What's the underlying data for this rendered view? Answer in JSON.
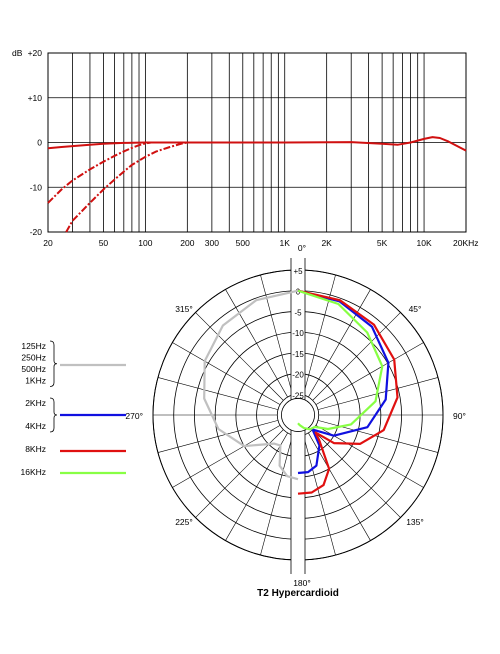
{
  "chart_data": [
    {
      "type": "line",
      "title": "",
      "xlabel": "",
      "ylabel": "dB",
      "x_scale": "log",
      "xlim": [
        20,
        20000
      ],
      "ylim": [
        -20,
        20
      ],
      "grid": true,
      "x_tick_labels": [
        "20",
        "50",
        "100",
        "200",
        "300",
        "500",
        "1K",
        "2K",
        "5K",
        "10K",
        "20KHz"
      ],
      "x_tick_values": [
        20,
        50,
        100,
        200,
        300,
        500,
        1000,
        2000,
        5000,
        10000,
        20000
      ],
      "y_tick_labels": [
        "+20",
        "+10",
        "0",
        "-10",
        "-20"
      ],
      "y_tick_values": [
        20,
        10,
        0,
        -10,
        -20
      ],
      "y_unit_label": "dB",
      "series": [
        {
          "style": "solid",
          "color": "#d01010",
          "points": [
            [
              20,
              -1.3
            ],
            [
              25,
              -1.0
            ],
            [
              30,
              -0.8
            ],
            [
              40,
              -0.5
            ],
            [
              50,
              -0.3
            ],
            [
              70,
              -0.1
            ],
            [
              100,
              0
            ],
            [
              1000,
              0
            ],
            [
              3000,
              0.1
            ],
            [
              5000,
              -0.3
            ],
            [
              6500,
              -0.5
            ],
            [
              8000,
              0
            ],
            [
              10000,
              0.8
            ],
            [
              11500,
              1.2
            ],
            [
              13000,
              1.0
            ],
            [
              15000,
              0.2
            ],
            [
              20000,
              -1.8
            ]
          ]
        },
        {
          "style": "dashed",
          "color": "#d01010",
          "points": [
            [
              20,
              -13.5
            ],
            [
              25,
              -10.5
            ],
            [
              30,
              -8.5
            ],
            [
              40,
              -6.0
            ],
            [
              50,
              -4.3
            ],
            [
              60,
              -3.0
            ],
            [
              70,
              -2.0
            ],
            [
              80,
              -1.2
            ],
            [
              90,
              -0.6
            ],
            [
              100,
              -0.2
            ],
            [
              110,
              0
            ]
          ]
        },
        {
          "style": "dashed",
          "color": "#d01010",
          "points": [
            [
              27,
              -20
            ],
            [
              30,
              -17.5
            ],
            [
              40,
              -13.5
            ],
            [
              50,
              -10.5
            ],
            [
              60,
              -8.3
            ],
            [
              70,
              -6.5
            ],
            [
              80,
              -5.0
            ],
            [
              100,
              -3.2
            ],
            [
              120,
              -2.0
            ],
            [
              150,
              -1.0
            ],
            [
              180,
              -0.3
            ],
            [
              200,
              0
            ]
          ]
        }
      ]
    },
    {
      "type": "polar",
      "title": "T2  Hypercardioid",
      "angle_labels": [
        "0°",
        "45°",
        "90°",
        "135°",
        "180°",
        "225°",
        "270°",
        "315°"
      ],
      "radial_labels": [
        "+5",
        "0",
        "-5",
        "-10",
        "-15",
        "-20",
        "-25"
      ],
      "radial_values": [
        5,
        0,
        -5,
        -10,
        -15,
        -20,
        -25
      ],
      "radial_range_db": [
        -30,
        5
      ],
      "legend": [
        {
          "labels": [
            "125Hz",
            "250Hz",
            "500Hz",
            "1KHz"
          ],
          "color": "#c0c0c0"
        },
        {
          "labels": [
            "2KHz",
            "4KHz"
          ],
          "color": "#1010e0"
        },
        {
          "labels": [
            "8KHz"
          ],
          "color": "#e01010"
        },
        {
          "labels": [
            "16KHz"
          ],
          "color": "#88ff44"
        }
      ],
      "series": [
        {
          "legend_index": 0,
          "color": "#c0c0c0",
          "side": "left",
          "pattern": [
            [
              0,
              0
            ],
            [
              20,
              -0.5
            ],
            [
              40,
              -1.8
            ],
            [
              60,
              -4.0
            ],
            [
              80,
              -7.0
            ],
            [
              100,
              -10.5
            ],
            [
              120,
              -15.0
            ],
            [
              140,
              -21.0
            ],
            [
              150,
              -21.5
            ],
            [
              160,
              -17.0
            ],
            [
              170,
              -15.0
            ],
            [
              180,
              -14.5
            ]
          ]
        },
        {
          "legend_index": 1,
          "color": "#1010e0",
          "side": "right",
          "pattern": [
            [
              0,
              0
            ],
            [
              20,
              -0.8
            ],
            [
              40,
              -2.2
            ],
            [
              60,
              -4.8
            ],
            [
              80,
              -8.5
            ],
            [
              100,
              -13.0
            ],
            [
              120,
              -20.0
            ],
            [
              135,
              -25.0
            ],
            [
              145,
              -21.0
            ],
            [
              160,
              -17.0
            ],
            [
              170,
              -16.0
            ],
            [
              180,
              -16.0
            ]
          ]
        },
        {
          "legend_index": 2,
          "color": "#e01010",
          "side": "right",
          "pattern": [
            [
              0,
              0
            ],
            [
              20,
              -0.5
            ],
            [
              40,
              -1.5
            ],
            [
              60,
              -3.2
            ],
            [
              80,
              -5.6
            ],
            [
              100,
              -9.0
            ],
            [
              115,
              -13.5
            ],
            [
              128,
              -19.0
            ],
            [
              135,
              -24.0
            ],
            [
              140,
              -22.0
            ],
            [
              150,
              -15.0
            ],
            [
              160,
              -12.0
            ],
            [
              170,
              -11.0
            ],
            [
              180,
              -11.0
            ]
          ]
        },
        {
          "legend_index": 3,
          "color": "#88ff44",
          "side": "right",
          "pattern": [
            [
              0,
              0
            ],
            [
              20,
              -1.5
            ],
            [
              40,
              -4.0
            ],
            [
              60,
              -6.5
            ],
            [
              80,
              -11.0
            ],
            [
              100,
              -17.0
            ],
            [
              115,
              -22.0
            ],
            [
              125,
              -25.0
            ],
            [
              140,
              -25.5
            ],
            [
              155,
              -26.5
            ],
            [
              170,
              -27.5
            ],
            [
              180,
              -28.0
            ]
          ]
        }
      ]
    }
  ]
}
